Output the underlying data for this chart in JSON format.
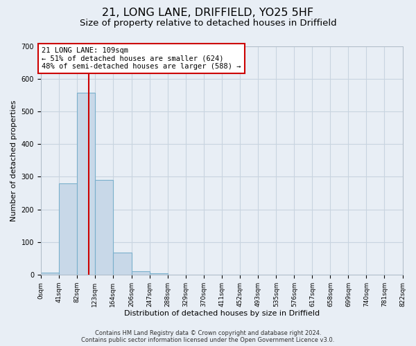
{
  "title": "21, LONG LANE, DRIFFIELD, YO25 5HF",
  "subtitle": "Size of property relative to detached houses in Driffield",
  "xlabel": "Distribution of detached houses by size in Driffield",
  "ylabel": "Number of detached properties",
  "bar_edges": [
    0,
    41,
    82,
    123,
    164,
    206,
    247,
    288,
    329,
    370,
    411,
    452,
    493,
    535,
    576,
    617,
    658,
    699,
    740,
    781,
    822
  ],
  "bar_heights": [
    6,
    280,
    557,
    290,
    68,
    12,
    5,
    0,
    0,
    0,
    0,
    0,
    0,
    0,
    0,
    0,
    0,
    0,
    0,
    0
  ],
  "tick_labels": [
    "0sqm",
    "41sqm",
    "82sqm",
    "123sqm",
    "164sqm",
    "206sqm",
    "247sqm",
    "288sqm",
    "329sqm",
    "370sqm",
    "411sqm",
    "452sqm",
    "493sqm",
    "535sqm",
    "576sqm",
    "617sqm",
    "658sqm",
    "699sqm",
    "740sqm",
    "781sqm",
    "822sqm"
  ],
  "bar_color": "#c8d8e8",
  "bar_edge_color": "#7ab0cc",
  "grid_color": "#c8d4e0",
  "background_color": "#e8eef5",
  "vline_x": 109,
  "vline_color": "#cc0000",
  "annotation_text": "21 LONG LANE: 109sqm\n← 51% of detached houses are smaller (624)\n48% of semi-detached houses are larger (588) →",
  "annotation_box_facecolor": "#ffffff",
  "annotation_box_edgecolor": "#cc0000",
  "ylim": [
    0,
    700
  ],
  "yticks": [
    0,
    100,
    200,
    300,
    400,
    500,
    600,
    700
  ],
  "footer_line1": "Contains HM Land Registry data © Crown copyright and database right 2024.",
  "footer_line2": "Contains public sector information licensed under the Open Government Licence v3.0.",
  "title_fontsize": 11.5,
  "subtitle_fontsize": 9.5,
  "tick_fontsize": 6.5,
  "ylabel_fontsize": 8,
  "xlabel_fontsize": 8,
  "footer_fontsize": 6,
  "annotation_fontsize": 7.5
}
